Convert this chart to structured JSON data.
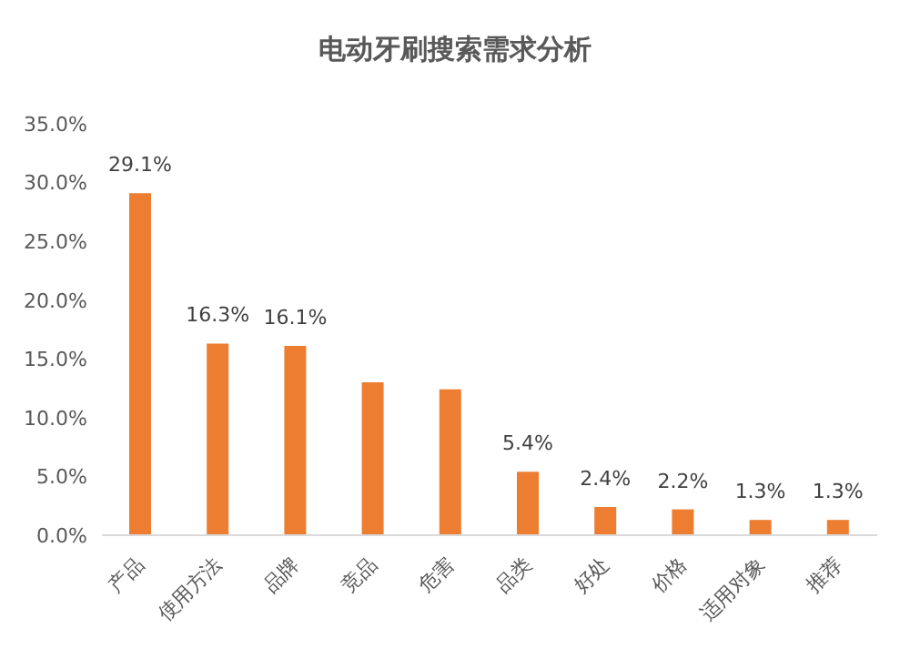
{
  "chart_data": {
    "type": "bar",
    "title": "电动牙刷搜索需求分析",
    "categories": [
      "产品",
      "使用方法",
      "品牌",
      "竞品",
      "危害",
      "品类",
      "好处",
      "价格",
      "适用对象",
      "推荐"
    ],
    "values": [
      29.1,
      16.3,
      16.1,
      13.0,
      12.4,
      5.4,
      2.4,
      2.2,
      1.3,
      1.3
    ],
    "value_labels": [
      "29.1%",
      "16.3%",
      "16.1%",
      null,
      null,
      "5.4%",
      "2.4%",
      "2.2%",
      "1.3%",
      "1.3%"
    ],
    "color": "#ed7d31",
    "ylim": [
      0,
      35
    ],
    "yticks": [
      {
        "value": 0,
        "label": "0.0%"
      },
      {
        "value": 5,
        "label": "5.0%"
      },
      {
        "value": 10,
        "label": "10.0%"
      },
      {
        "value": 15,
        "label": "15.0%"
      },
      {
        "value": 20,
        "label": "20.0%"
      },
      {
        "value": 25,
        "label": "25.0%"
      },
      {
        "value": 30,
        "label": "30.0%"
      },
      {
        "value": 35,
        "label": "35.0%"
      }
    ],
    "grid": false
  }
}
